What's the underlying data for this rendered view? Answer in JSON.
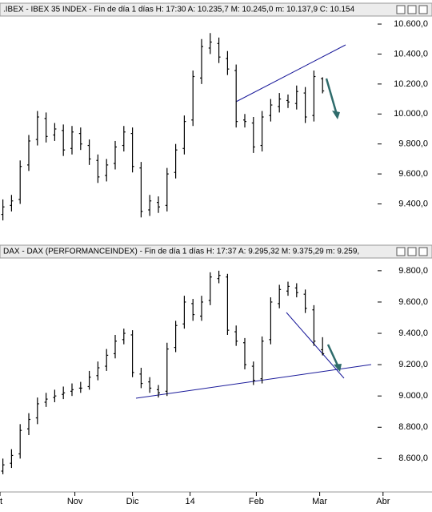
{
  "chart_data": [
    {
      "type": "ohlc",
      "title": ".IBEX - IBEX 35 INDEX - Fin de día 1 días  H: 17:30  A: 10.235,7  M: 10.245,0  m: 10.137,9  C: 10.154",
      "x": [
        1,
        4,
        7,
        10,
        13,
        16,
        19,
        22,
        25,
        28,
        31,
        34,
        37,
        40,
        43,
        46,
        49,
        52,
        55,
        58,
        61,
        64,
        67,
        70,
        73,
        76,
        79,
        82,
        85,
        88,
        91,
        94,
        97,
        100,
        103,
        106,
        109,
        112
      ],
      "open": [
        9330,
        9390,
        9430,
        9660,
        9830,
        9970,
        9860,
        9890,
        9770,
        9870,
        9790,
        9690,
        9590,
        9670,
        9790,
        9870,
        9640,
        9360,
        9410,
        9390,
        9610,
        9770,
        9960,
        10240,
        10440,
        10470,
        10370,
        10290,
        9960,
        9940,
        9790,
        9990,
        10050,
        10090,
        10070,
        10140,
        9990,
        10235.7
      ],
      "high": [
        9430,
        9460,
        9690,
        9860,
        10020,
        10010,
        9940,
        9930,
        9920,
        9910,
        9830,
        9730,
        9700,
        9820,
        9920,
        9910,
        9680,
        9460,
        9450,
        9640,
        9800,
        9990,
        10290,
        10500,
        10540,
        10510,
        10420,
        10330,
        10000,
        9980,
        10020,
        10100,
        10140,
        10130,
        10190,
        10180,
        10290,
        10245
      ],
      "low": [
        9290,
        9350,
        9400,
        9620,
        9790,
        9810,
        9820,
        9720,
        9730,
        9760,
        9660,
        9540,
        9550,
        9630,
        9750,
        9610,
        9310,
        9320,
        9340,
        9350,
        9570,
        9730,
        9920,
        10200,
        10400,
        10340,
        10260,
        9910,
        9910,
        9740,
        9750,
        9950,
        10010,
        10040,
        10030,
        9940,
        9950,
        10137.9
      ],
      "close": [
        9380,
        9420,
        9650,
        9820,
        9980,
        9850,
        9900,
        9760,
        9880,
        9800,
        9700,
        9580,
        9660,
        9780,
        9880,
        9650,
        9350,
        9420,
        9380,
        9600,
        9760,
        9950,
        10250,
        10450,
        10480,
        10380,
        10300,
        9950,
        9950,
        9780,
        9980,
        10060,
        10100,
        10080,
        10150,
        9980,
        10250,
        10154
      ],
      "color": "#000000",
      "xlim": [
        0,
        150
      ],
      "ylim": [
        9130,
        10643
      ],
      "yticks": [
        {
          "value": 9400,
          "label": "9.400,0"
        },
        {
          "value": 9600,
          "label": "9.600,0"
        },
        {
          "value": 9800,
          "label": "9.800,0"
        },
        {
          "value": 10000,
          "label": "10.000,0"
        },
        {
          "value": 10200,
          "label": "10.200,0"
        },
        {
          "value": 10400,
          "label": "10.400,0"
        },
        {
          "value": 10600,
          "label": "10.600,0"
        }
      ]
    },
    {
      "type": "ohlc",
      "title": "DAX - DAX (PERFORMANCEINDEX) - Fin de día 1 días  H: 17:37  A: 9.295,32  M: 9.375,29  m: 9.259,",
      "x": [
        1,
        4,
        7,
        10,
        13,
        16,
        19,
        22,
        25,
        28,
        31,
        34,
        37,
        40,
        43,
        46,
        49,
        52,
        55,
        58,
        61,
        64,
        67,
        70,
        73,
        76,
        79,
        82,
        85,
        88,
        91,
        94,
        97,
        100,
        103,
        106,
        109,
        112
      ],
      "open": [
        8520,
        8570,
        8630,
        8790,
        8860,
        8960,
        8990,
        9010,
        9030,
        9050,
        9060,
        9130,
        9190,
        9270,
        9360,
        9390,
        9140,
        9090,
        9040,
        9030,
        9310,
        9460,
        9590,
        9510,
        9610,
        9750,
        9760,
        9410,
        9340,
        9190,
        9110,
        9360,
        9590,
        9670,
        9690,
        9650,
        9550,
        9295.32
      ],
      "high": [
        8600,
        8660,
        8820,
        8890,
        8990,
        9020,
        9040,
        9060,
        9080,
        9090,
        9160,
        9220,
        9300,
        9390,
        9430,
        9420,
        9180,
        9120,
        9070,
        9340,
        9480,
        9640,
        9620,
        9640,
        9790,
        9800,
        9780,
        9450,
        9370,
        9220,
        9380,
        9630,
        9710,
        9730,
        9720,
        9680,
        9580,
        9375.29
      ],
      "low": [
        8500,
        8540,
        8600,
        8750,
        8820,
        8930,
        8960,
        8980,
        9000,
        9020,
        9040,
        9100,
        9160,
        9240,
        9330,
        9120,
        9050,
        9020,
        8990,
        9000,
        9280,
        9430,
        9480,
        9480,
        9580,
        9720,
        9390,
        9320,
        9170,
        9070,
        9080,
        9330,
        9560,
        9640,
        9630,
        9530,
        9320,
        9259
      ],
      "close": [
        8560,
        8620,
        8780,
        8850,
        8950,
        8980,
        9000,
        9020,
        9040,
        9050,
        9120,
        9180,
        9260,
        9350,
        9400,
        9150,
        9080,
        9050,
        9020,
        9300,
        9450,
        9600,
        9520,
        9600,
        9760,
        9770,
        9420,
        9350,
        9200,
        9100,
        9350,
        9600,
        9680,
        9700,
        9660,
        9560,
        9350,
        9270
      ],
      "color": "#000000",
      "xlim": [
        0,
        150
      ],
      "xticks": [
        {
          "value": 0,
          "label": "t"
        },
        {
          "value": 26,
          "label": "Nov"
        },
        {
          "value": 46,
          "label": "Dic"
        },
        {
          "value": 66,
          "label": "14"
        },
        {
          "value": 89,
          "label": "Feb"
        },
        {
          "value": 111,
          "label": "Mar"
        },
        {
          "value": 133,
          "label": "Abr"
        }
      ],
      "ylim": [
        8397,
        9871
      ],
      "yticks": [
        {
          "value": 8600,
          "label": "8.600,0"
        },
        {
          "value": 8800,
          "label": "8.800,0"
        },
        {
          "value": 9000,
          "label": "9.000,0"
        },
        {
          "value": 9200,
          "label": "9.200,0"
        },
        {
          "value": 9400,
          "label": "9.400,0"
        },
        {
          "value": 9600,
          "label": "9.600,0"
        },
        {
          "value": 9800,
          "label": "9.800,0"
        }
      ]
    }
  ]
}
